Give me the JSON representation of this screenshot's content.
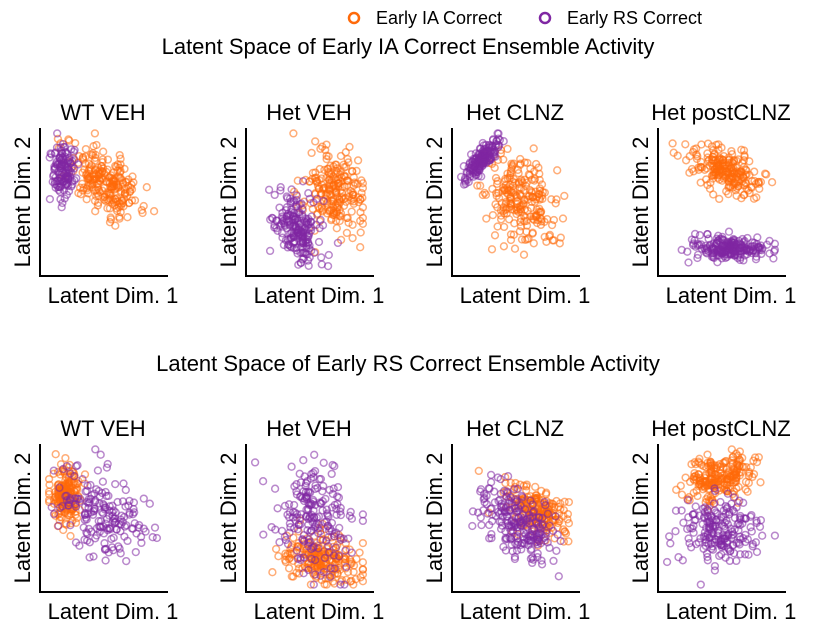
{
  "legend": {
    "placement": "top-right",
    "entries": [
      {
        "label": "Early IA Correct",
        "color": "#ff6a0a"
      },
      {
        "label": "Early RS Correct",
        "color": "#7f27a3"
      }
    ]
  },
  "chart_data": [
    {
      "type": "scatter",
      "section_title": "Latent Space of Early IA Correct Ensemble Activity",
      "title": "WT VEH",
      "xlabel": "Latent Dim. 1",
      "ylabel": "Latent Dim. 2",
      "xlim": [
        0,
        1
      ],
      "ylim": [
        0,
        1
      ],
      "ticks": false,
      "grid": false,
      "series": [
        {
          "name": "Early IA Correct",
          "color": "#ff6a0a",
          "count": 230,
          "center": [
            0.52,
            0.64
          ],
          "spread": [
            0.17,
            0.13
          ],
          "rho": -0.55
        },
        {
          "name": "Early RS Correct",
          "color": "#7f27a3",
          "count": 130,
          "center": [
            0.14,
            0.72
          ],
          "spread": [
            0.05,
            0.1
          ],
          "rho": 0.1
        }
      ]
    },
    {
      "type": "scatter",
      "title": "Het VEH",
      "xlabel": "Latent Dim. 1",
      "ylabel": "Latent Dim. 2",
      "xlim": [
        0,
        1
      ],
      "ylim": [
        0,
        1
      ],
      "ticks": false,
      "grid": false,
      "series": [
        {
          "name": "Early IA Correct",
          "color": "#ff6a0a",
          "count": 220,
          "center": [
            0.72,
            0.56
          ],
          "spread": [
            0.13,
            0.15
          ],
          "rho": -0.2
        },
        {
          "name": "Early RS Correct",
          "color": "#7f27a3",
          "count": 200,
          "center": [
            0.4,
            0.3
          ],
          "spread": [
            0.11,
            0.13
          ],
          "rho": -0.3
        }
      ]
    },
    {
      "type": "scatter",
      "title": "Het CLNZ",
      "xlabel": "Latent Dim. 1",
      "ylabel": "Latent Dim. 2",
      "xlim": [
        0,
        1
      ],
      "ylim": [
        0,
        1
      ],
      "ticks": false,
      "grid": false,
      "series": [
        {
          "name": "Early IA Correct",
          "color": "#ff6a0a",
          "count": 230,
          "center": [
            0.55,
            0.5
          ],
          "spread": [
            0.16,
            0.17
          ],
          "rho": -0.25
        },
        {
          "name": "Early RS Correct",
          "color": "#7f27a3",
          "count": 170,
          "center": [
            0.2,
            0.8
          ],
          "spread": [
            0.08,
            0.07
          ],
          "rho": 0.8
        }
      ]
    },
    {
      "type": "scatter",
      "title": "Het postCLNZ",
      "xlabel": "Latent Dim. 1",
      "ylabel": "Latent Dim. 2",
      "xlim": [
        0,
        1
      ],
      "ylim": [
        0,
        1
      ],
      "ticks": false,
      "grid": false,
      "series": [
        {
          "name": "Early IA Correct",
          "color": "#ff6a0a",
          "count": 220,
          "center": [
            0.55,
            0.72
          ],
          "spread": [
            0.17,
            0.09
          ],
          "rho": -0.5
        },
        {
          "name": "Early RS Correct",
          "color": "#7f27a3",
          "count": 220,
          "center": [
            0.58,
            0.16
          ],
          "spread": [
            0.17,
            0.04
          ],
          "rho": 0.05
        }
      ]
    },
    {
      "type": "scatter",
      "section_title": "Latent Space of Early RS Correct Ensemble Activity",
      "title": "WT VEH",
      "xlabel": "Latent Dim. 1",
      "ylabel": "Latent Dim. 2",
      "xlim": [
        0,
        1
      ],
      "ylim": [
        0,
        1
      ],
      "ticks": false,
      "grid": false,
      "series": [
        {
          "name": "Early IA Correct",
          "color": "#ff6a0a",
          "count": 200,
          "center": [
            0.17,
            0.65
          ],
          "spread": [
            0.07,
            0.1
          ],
          "rho": 0.0
        },
        {
          "name": "Early RS Correct",
          "color": "#7f27a3",
          "count": 180,
          "center": [
            0.5,
            0.52
          ],
          "spread": [
            0.2,
            0.15
          ],
          "rho": -0.3
        }
      ]
    },
    {
      "type": "scatter",
      "title": "Het VEH",
      "xlabel": "Latent Dim. 1",
      "ylabel": "Latent Dim. 2",
      "xlim": [
        0,
        1
      ],
      "ylim": [
        0,
        1
      ],
      "ticks": false,
      "grid": false,
      "series": [
        {
          "name": "Early IA Correct",
          "color": "#ff6a0a",
          "count": 220,
          "center": [
            0.6,
            0.2
          ],
          "spread": [
            0.16,
            0.09
          ],
          "rho": -0.25
        },
        {
          "name": "Early RS Correct",
          "color": "#7f27a3",
          "count": 200,
          "center": [
            0.55,
            0.5
          ],
          "spread": [
            0.18,
            0.2
          ],
          "rho": -0.2
        }
      ]
    },
    {
      "type": "scatter",
      "title": "Het CLNZ",
      "xlabel": "Latent Dim. 1",
      "ylabel": "Latent Dim. 2",
      "xlim": [
        0,
        1
      ],
      "ylim": [
        0,
        1
      ],
      "ticks": false,
      "grid": false,
      "series": [
        {
          "name": "Early IA Correct",
          "color": "#ff6a0a",
          "count": 220,
          "center": [
            0.68,
            0.55
          ],
          "spread": [
            0.15,
            0.1
          ],
          "rho": -0.5
        },
        {
          "name": "Early RS Correct",
          "color": "#7f27a3",
          "count": 220,
          "center": [
            0.52,
            0.45
          ],
          "spread": [
            0.16,
            0.15
          ],
          "rho": -0.45
        }
      ]
    },
    {
      "type": "scatter",
      "title": "Het postCLNZ",
      "xlabel": "Latent Dim. 1",
      "ylabel": "Latent Dim. 2",
      "xlim": [
        0,
        1
      ],
      "ylim": [
        0,
        1
      ],
      "ticks": false,
      "grid": false,
      "series": [
        {
          "name": "Early IA Correct",
          "color": "#ff6a0a",
          "count": 230,
          "center": [
            0.48,
            0.78
          ],
          "spread": [
            0.15,
            0.08
          ],
          "rho": 0.3
        },
        {
          "name": "Early RS Correct",
          "color": "#7f27a3",
          "count": 200,
          "center": [
            0.48,
            0.4
          ],
          "spread": [
            0.17,
            0.13
          ],
          "rho": 0.0
        }
      ]
    }
  ]
}
